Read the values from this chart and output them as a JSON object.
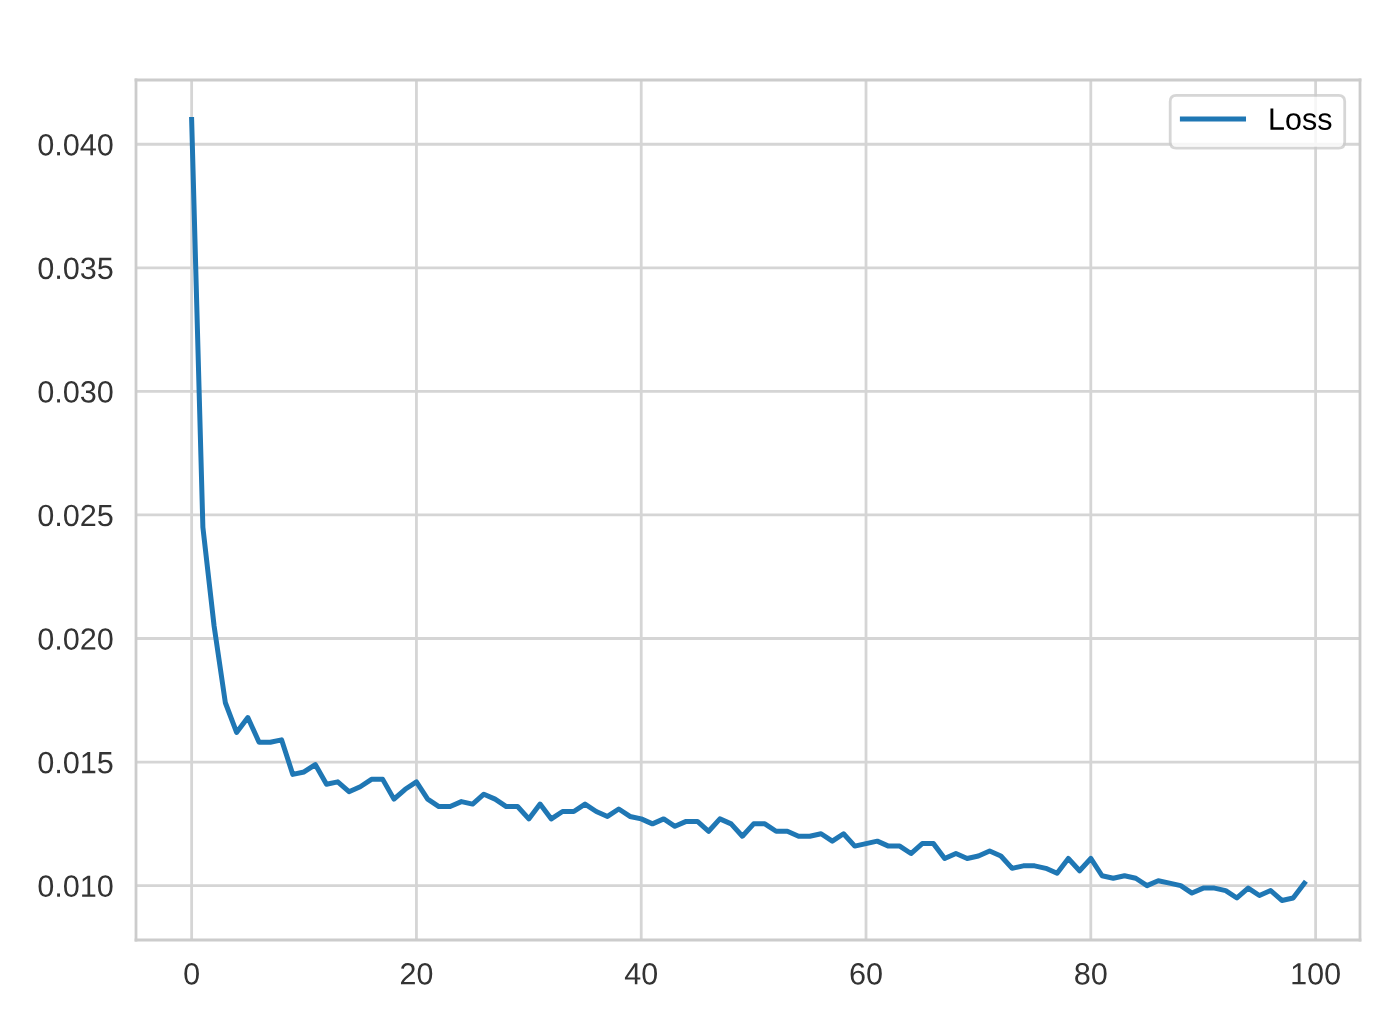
{
  "chart_data": {
    "type": "line",
    "x": [
      0,
      1,
      2,
      3,
      4,
      5,
      6,
      7,
      8,
      9,
      10,
      11,
      12,
      13,
      14,
      15,
      16,
      17,
      18,
      19,
      20,
      21,
      22,
      23,
      24,
      25,
      26,
      27,
      28,
      29,
      30,
      31,
      32,
      33,
      34,
      35,
      36,
      37,
      38,
      39,
      40,
      41,
      42,
      43,
      44,
      45,
      46,
      47,
      48,
      49,
      50,
      51,
      52,
      53,
      54,
      55,
      56,
      57,
      58,
      59,
      60,
      61,
      62,
      63,
      64,
      65,
      66,
      67,
      68,
      69,
      70,
      71,
      72,
      73,
      74,
      75,
      76,
      77,
      78,
      79,
      80,
      81,
      82,
      83,
      84,
      85,
      86,
      87,
      88,
      89,
      90,
      91,
      92,
      93,
      94,
      95,
      96,
      97,
      98,
      99
    ],
    "series": [
      {
        "name": "Loss",
        "color": "#1f77b4",
        "values": [
          0.041,
          0.0245,
          0.0205,
          0.0174,
          0.0162,
          0.0168,
          0.0158,
          0.0158,
          0.0159,
          0.0145,
          0.0146,
          0.0149,
          0.0141,
          0.0142,
          0.0138,
          0.014,
          0.0143,
          0.0143,
          0.0135,
          0.0139,
          0.0142,
          0.0135,
          0.0132,
          0.0132,
          0.0134,
          0.0133,
          0.0137,
          0.0135,
          0.0132,
          0.0132,
          0.0127,
          0.0133,
          0.0127,
          0.013,
          0.013,
          0.0133,
          0.013,
          0.0128,
          0.0131,
          0.0128,
          0.0127,
          0.0125,
          0.0127,
          0.0124,
          0.0126,
          0.0126,
          0.0122,
          0.0127,
          0.0125,
          0.012,
          0.0125,
          0.0125,
          0.0122,
          0.0122,
          0.012,
          0.012,
          0.0121,
          0.0118,
          0.0121,
          0.0116,
          0.0117,
          0.0118,
          0.0116,
          0.0116,
          0.0113,
          0.0117,
          0.0117,
          0.0111,
          0.0113,
          0.0111,
          0.0112,
          0.0114,
          0.0112,
          0.0107,
          0.0108,
          0.0108,
          0.0107,
          0.0105,
          0.0111,
          0.0106,
          0.0111,
          0.0104,
          0.0103,
          0.0104,
          0.0103,
          0.01,
          0.0102,
          0.0101,
          0.01,
          0.0097,
          0.0099,
          0.0099,
          0.0098,
          0.0095,
          0.0099,
          0.0096,
          0.0098,
          0.0094,
          0.0095,
          0.0101
        ]
      }
    ],
    "xlim": [
      -4.95,
      103.95
    ],
    "ylim": [
      0.0078,
      0.0426
    ],
    "xticks": [
      0,
      20,
      40,
      60,
      80,
      100
    ],
    "yticks": [
      {
        "value": 0.01,
        "label": "0.010"
      },
      {
        "value": 0.015,
        "label": "0.015"
      },
      {
        "value": 0.02,
        "label": "0.020"
      },
      {
        "value": 0.025,
        "label": "0.025"
      },
      {
        "value": 0.03,
        "label": "0.030"
      },
      {
        "value": 0.035,
        "label": "0.035"
      },
      {
        "value": 0.04,
        "label": "0.040"
      }
    ],
    "grid": true,
    "legend": "upper right"
  }
}
